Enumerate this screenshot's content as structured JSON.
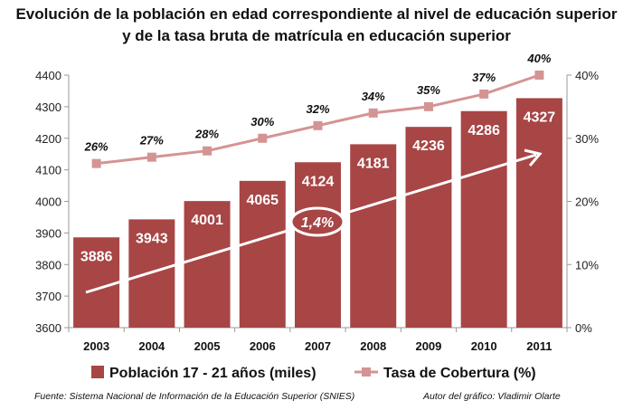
{
  "chart_data": {
    "type": "bar+line",
    "title": "Evolución de la población en edad correspondiente al nivel de educación superior",
    "subtitle": "y de la tasa bruta de matrícula en educación superior",
    "categories": [
      "2003",
      "2004",
      "2005",
      "2006",
      "2007",
      "2008",
      "2009",
      "2010",
      "2011"
    ],
    "series": [
      {
        "name": "Población 17 - 21 años (miles)",
        "type": "bar",
        "axis": "left",
        "color": "#a84545",
        "values": [
          3886,
          3943,
          4001,
          4065,
          4124,
          4181,
          4236,
          4286,
          4327
        ]
      },
      {
        "name": "Tasa de Cobertura (%)",
        "type": "line",
        "axis": "right",
        "color": "#d49494",
        "values": [
          26,
          27,
          28,
          30,
          32,
          34,
          35,
          37,
          40
        ],
        "labels": [
          "26%",
          "27%",
          "28%",
          "30%",
          "32%",
          "34%",
          "35%",
          "37%",
          "40%"
        ]
      }
    ],
    "ylim_left": [
      3600,
      4400
    ],
    "yticks_left": [
      "3600",
      "3700",
      "3800",
      "3900",
      "4000",
      "4100",
      "4200",
      "4300",
      "4400"
    ],
    "ylim_right": [
      0,
      40
    ],
    "yticks_right": [
      "0%",
      "10%",
      "20%",
      "30%",
      "40%"
    ],
    "annotation": "1,4%",
    "grid": false,
    "legend_position": "bottom"
  },
  "footer": {
    "source": "Fuente: Sistema Nacional de Información de la Educación Superior (SNIES)",
    "author": "Autor del gráfico: Vladimir Olarte"
  }
}
